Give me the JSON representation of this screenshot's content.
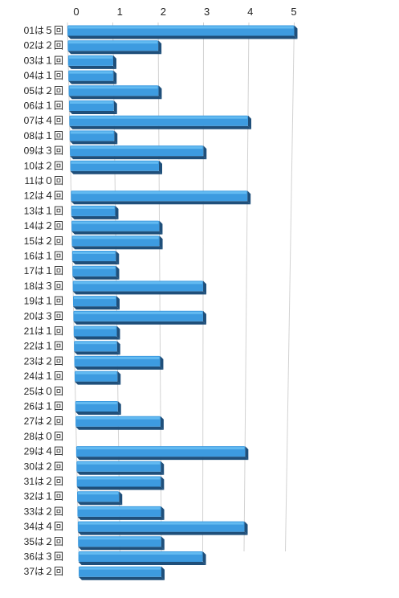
{
  "chart_data": {
    "type": "bar",
    "orientation": "horizontal",
    "style": "3d",
    "bar_color": "#3d9be0",
    "bar_top_color": "#6cc2f5",
    "bar_shadow_color": "#1f4f7a",
    "grid": true,
    "grid_axis": "x",
    "xlim": [
      0,
      5
    ],
    "x_ticks": [
      "0",
      "1",
      "2",
      "3",
      "4",
      "5"
    ],
    "categories": [
      "01は５回",
      "02は２回",
      "03は１回",
      "04は１回",
      "05は２回",
      "06は１回",
      "07は４回",
      "08は１回",
      "09は３回",
      "10は２回",
      "11は０回",
      "12は４回",
      "13は１回",
      "14は２回",
      "15は２回",
      "16は１回",
      "17は１回",
      "18は３回",
      "19は１回",
      "20は３回",
      "21は１回",
      "22は１回",
      "23は２回",
      "24は１回",
      "25は０回",
      "26は１回",
      "27は２回",
      "28は０回",
      "29は４回",
      "30は２回",
      "31は２回",
      "32は１回",
      "33は２回",
      "34は４回",
      "35は２回",
      "36は３回",
      "37は２回"
    ],
    "values": [
      5,
      2,
      1,
      1,
      2,
      1,
      4,
      1,
      3,
      2,
      0,
      4,
      1,
      2,
      2,
      1,
      1,
      3,
      1,
      3,
      1,
      1,
      2,
      1,
      0,
      1,
      2,
      0,
      4,
      2,
      2,
      1,
      2,
      4,
      2,
      3,
      2
    ]
  }
}
